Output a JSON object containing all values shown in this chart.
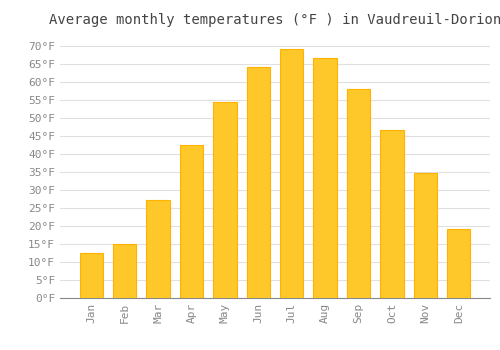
{
  "title": "Average monthly temperatures (°F ) in Vaudreuil-Dorion",
  "months": [
    "Jan",
    "Feb",
    "Mar",
    "Apr",
    "May",
    "Jun",
    "Jul",
    "Aug",
    "Sep",
    "Oct",
    "Nov",
    "Dec"
  ],
  "values": [
    12.5,
    15.0,
    27.0,
    42.5,
    54.5,
    64.0,
    69.0,
    66.5,
    58.0,
    46.5,
    34.5,
    19.0
  ],
  "bar_color": "#FFC82A",
  "bar_edge_color": "#FFB300",
  "background_color": "#FFFFFF",
  "grid_color": "#E0E0E0",
  "text_color": "#888888",
  "title_color": "#444444",
  "ytick_labels": [
    "0°F",
    "5°F",
    "10°F",
    "15°F",
    "20°F",
    "25°F",
    "30°F",
    "35°F",
    "40°F",
    "45°F",
    "50°F",
    "55°F",
    "60°F",
    "65°F",
    "70°F"
  ],
  "ytick_values": [
    0,
    5,
    10,
    15,
    20,
    25,
    30,
    35,
    40,
    45,
    50,
    55,
    60,
    65,
    70
  ],
  "ylim": [
    0,
    73
  ],
  "title_fontsize": 10,
  "tick_fontsize": 8,
  "bar_width": 0.7
}
